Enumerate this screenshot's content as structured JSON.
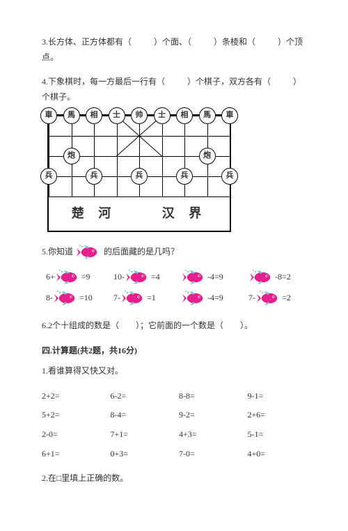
{
  "q3": {
    "text_a": "3.长方体、正方体都有（",
    "text_b": "）个面、（",
    "text_c": "）条棱和（",
    "text_d": "）个顶点。"
  },
  "q4": {
    "text_a": "4.下象棋时，每一方最后一行有（",
    "text_b": "）个棋子，双方各有（",
    "text_c": "）个棋子。"
  },
  "chess": {
    "row0": [
      "車",
      "馬",
      "相",
      "士",
      "帅",
      "士",
      "相",
      "馬",
      "車"
    ],
    "row2": [
      "炮",
      "炮"
    ],
    "row3": [
      "兵",
      "兵",
      "兵",
      "兵",
      "兵"
    ],
    "river_l": "楚 河",
    "river_r": "汉 界"
  },
  "q5": {
    "prefix": "5.你知道",
    "suffix": "的后面藏的是几吗？",
    "fish_color_body": "#e91e8c",
    "fish_color_tail": "#7fc8e8",
    "eqs": [
      {
        "l": "6+",
        "r": "=9"
      },
      {
        "l": "10-",
        "r": "=4"
      },
      {
        "l": "",
        "r": "-4=9"
      },
      {
        "l": "",
        "r": "-8=2"
      },
      {
        "l": "8-",
        "r": "=10"
      },
      {
        "l": "7-",
        "r": "=1"
      },
      {
        "l": "",
        "r": "-4=9"
      },
      {
        "l": "7-",
        "r": "=2"
      }
    ]
  },
  "q6": "6.2个十组成的数是（　　）；它前面的一个数是（　　）。",
  "section4": "四.计算题(共2题，共16分)",
  "calc1_title": "1.看谁算得又快又对。",
  "calc1": [
    "2+2=",
    "6-2=",
    "8-8=",
    "9-1=",
    "5+2=",
    "8-4=",
    "9-2=",
    "2+6=",
    "2-0=",
    "7+1=",
    "4+3=",
    "5-1=",
    "6+1=",
    "0+3=",
    "7-0=",
    "4+0="
  ],
  "calc2_title": "2.在□里填上正确的数。"
}
